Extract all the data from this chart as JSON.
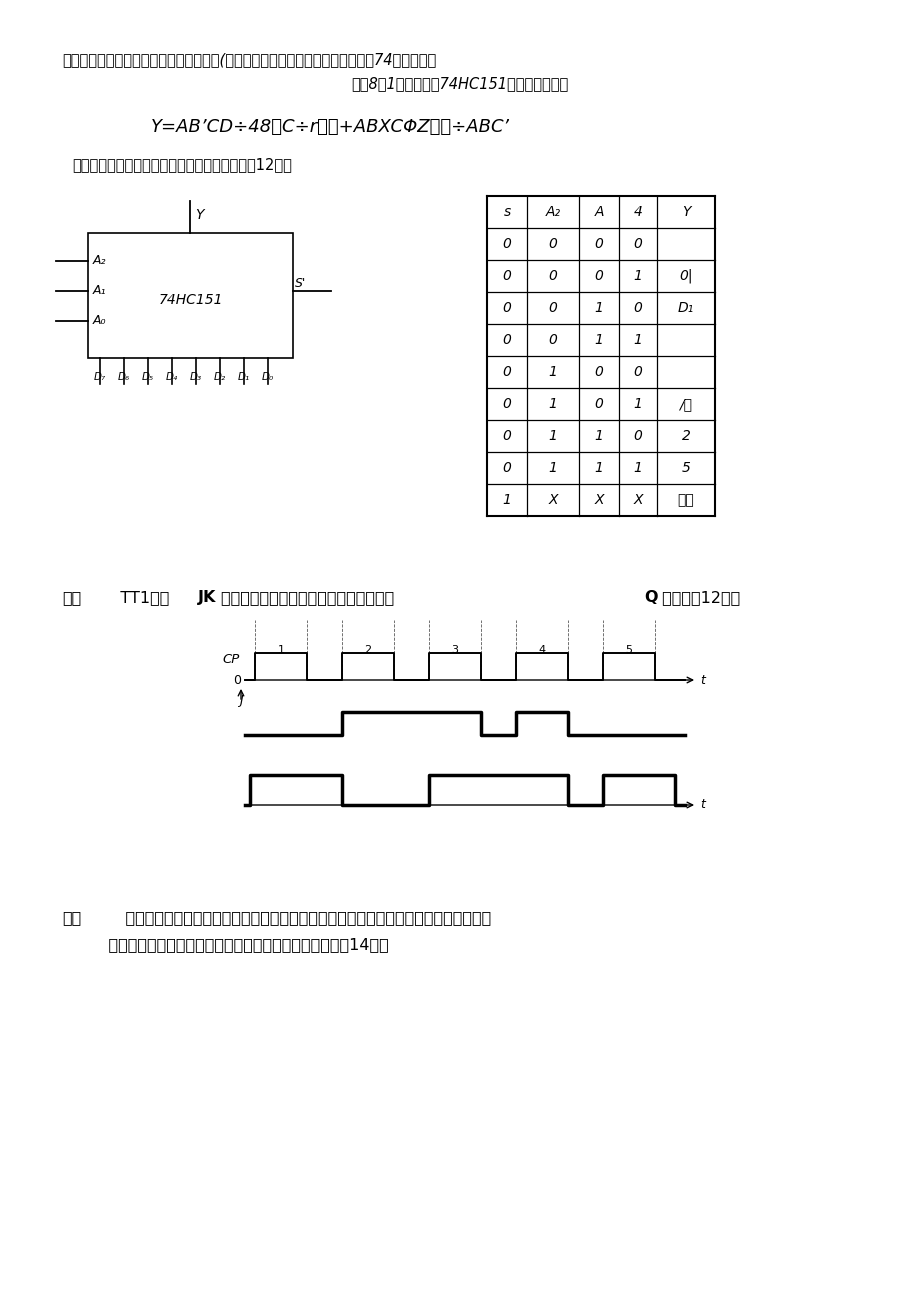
{
  "bg_color": "#ffffff",
  "page_width": 9.2,
  "page_height": 13.01,
  "line1": "下面电路图中，写出输出信号是什么状态(高电平、低电平或高阻态），已知义为74系四、试用",
  "line2": "一片8选1数据选择器74HC151产生逻辑函数：",
  "formula": "Y=AB’CD÷48（C÷r＞）+ABXCΦZ））÷ABC’",
  "req": "要求给出设计的全过程，并画出逻辑电路图。（12分）",
  "ic_label": "74HC151",
  "table_headers": [
    "s",
    "A₂",
    "A",
    "4",
    "Y"
  ],
  "table_rows": [
    [
      "0",
      "0",
      "0",
      "0",
      ""
    ],
    [
      "0",
      "0",
      "0",
      "1",
      "0|"
    ],
    [
      "0",
      "0",
      "1",
      "0",
      "D₁"
    ],
    [
      "0",
      "0",
      "1",
      "1",
      ""
    ],
    [
      "0",
      "1",
      "0",
      "0",
      ""
    ],
    [
      "0",
      "1",
      "0",
      "1",
      "/人"
    ],
    [
      "0",
      "1",
      "1",
      "0",
      "2"
    ],
    [
      "0",
      "1",
      "1",
      "1",
      "5"
    ],
    [
      "1",
      "X",
      "X",
      "X",
      "高阻"
    ]
  ],
  "sec5_prefix": "五、",
  "sec5_rest": "    TT1主从 JK触发器的输入波形如图所示，画出输出端 Q 的波形（12分）",
  "sec6_line1": "六、    分析如图时序逻辑电路的逻辑功能，写出电路的驱动方程、状态方程和输出方程，画出",
  "sec6_line2": "        电路的状态转换图，说明电路的功能以及能否自启动。（14分）"
}
